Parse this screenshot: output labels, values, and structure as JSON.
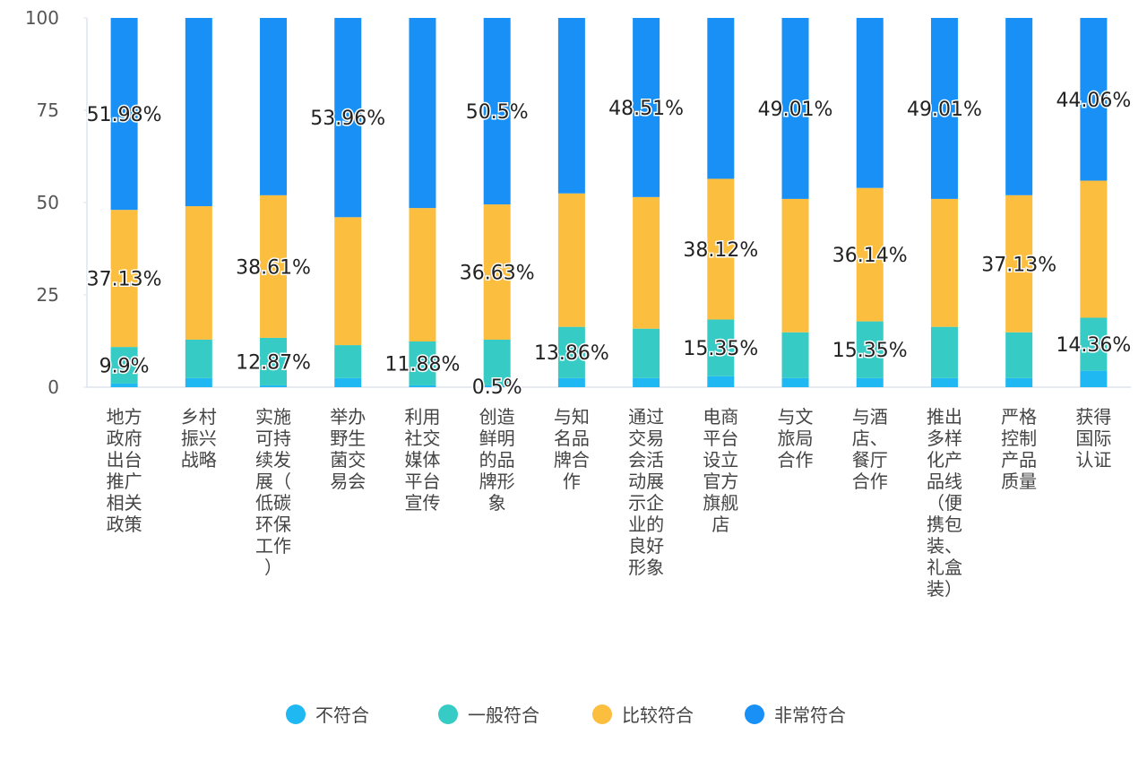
{
  "chart_data": {
    "type": "stacked_bar",
    "categories": [
      "地方政府出台推广相关政策",
      "乡村振兴战略",
      "实施可持续发展（低碳环保工作）",
      "举办野生菌交易会",
      "利用社交媒体平台宣传",
      "创造鲜明的品牌形象",
      "与知名品牌合作",
      "通过交易会活动展示企业的良好形象",
      "电商平台设立官方旗舰店",
      "与文旅局合作",
      "与酒店、餐厅合作",
      "推出多样化产品线（便携包装、礼盒装）",
      "严格控制产品质量",
      "获得国际认证"
    ],
    "series": [
      {
        "name": "不符合",
        "color": "#1fb8f2",
        "values": [
          0.99,
          2.48,
          0.5,
          2.48,
          0.5,
          0.5,
          2.48,
          2.48,
          2.97,
          2.48,
          2.47,
          2.48,
          2.48,
          4.46
        ],
        "value_labels": [
          null,
          null,
          null,
          null,
          null,
          "0.5%",
          null,
          null,
          null,
          null,
          null,
          null,
          null,
          null
        ]
      },
      {
        "name": "一般符合",
        "color": "#36cbc4",
        "values": [
          9.9,
          10.4,
          12.87,
          8.91,
          11.88,
          12.37,
          13.86,
          13.37,
          15.35,
          12.38,
          15.35,
          13.86,
          12.38,
          14.36
        ],
        "value_labels": [
          "9.9%",
          null,
          "12.87%",
          null,
          "11.88%",
          null,
          "13.86%",
          null,
          "15.35%",
          null,
          "15.35%",
          null,
          null,
          "14.36%"
        ]
      },
      {
        "name": "比较符合",
        "color": "#fbbe3f",
        "values": [
          37.13,
          36.14,
          38.61,
          34.65,
          36.14,
          36.63,
          36.14,
          35.64,
          38.12,
          36.13,
          36.14,
          34.65,
          37.13,
          37.12
        ],
        "value_labels": [
          "37.13%",
          null,
          "38.61%",
          null,
          null,
          "36.63%",
          null,
          null,
          "38.12%",
          null,
          "36.14%",
          null,
          "37.13%",
          null
        ]
      },
      {
        "name": "非常符合",
        "color": "#1890f5",
        "values": [
          51.98,
          50.98,
          48.02,
          53.96,
          51.48,
          50.5,
          47.52,
          48.51,
          43.56,
          49.01,
          46.04,
          49.01,
          48.01,
          44.06
        ],
        "value_labels": [
          "51.98%",
          null,
          null,
          "53.96%",
          null,
          "50.5%",
          null,
          "48.51%",
          null,
          "49.01%",
          null,
          "49.01%",
          null,
          "44.06%"
        ]
      }
    ],
    "ylim": [
      0,
      100
    ],
    "yticks": [
      0,
      25,
      50,
      75,
      100
    ],
    "legend": "bottom"
  }
}
